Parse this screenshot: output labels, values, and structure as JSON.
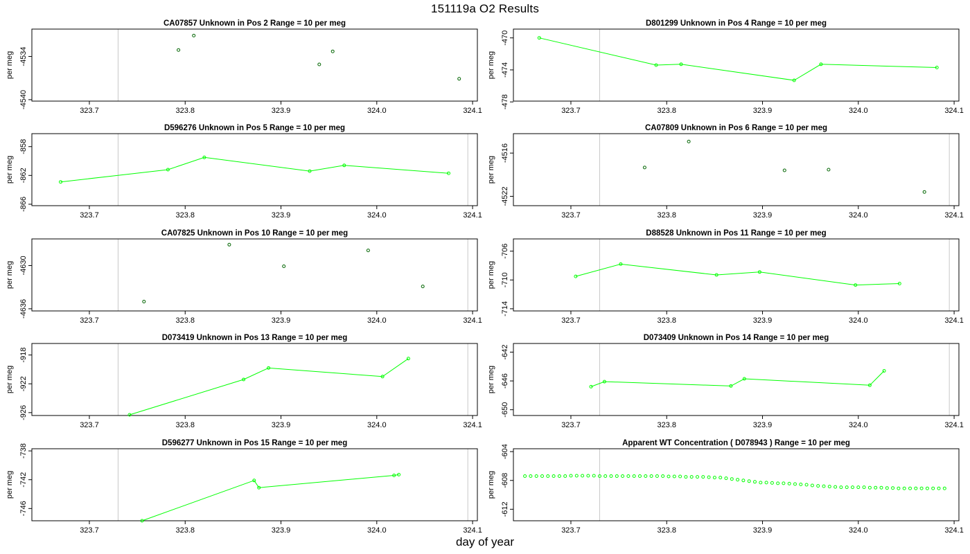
{
  "title": "151119a  O2 Results",
  "xlabel": "day of year",
  "chart_data": [
    {
      "type": "scatter",
      "title": "CA07857    Unknown in Pos 2          Range = 10 per meg",
      "ylabel": "per meg",
      "xlim": [
        323.64,
        324.105
      ],
      "ylim": [
        -4540.2,
        -4530.2
      ],
      "xticks": [
        323.7,
        323.8,
        323.9,
        324.0,
        324.1
      ],
      "xtick_labels": [
        "323.7",
        "323.8",
        "323.9",
        "324.0",
        "324.1"
      ],
      "yticks": [
        -4534,
        -4540
      ],
      "vlines": [
        323.73
      ],
      "series": [
        {
          "x": [
            323.793,
            323.809,
            323.94,
            323.954,
            324.086
          ],
          "y": [
            -4533.1,
            -4531.1,
            -4535.1,
            -4533.3,
            -4537.1
          ],
          "connected": false,
          "color": "#006400"
        }
      ]
    },
    {
      "type": "line",
      "title": "D801299    Unknown in Pos 4          Range = 10 per meg",
      "ylabel": "per meg",
      "xlim": [
        323.64,
        324.105
      ],
      "ylim": [
        -477.9,
        -468.9
      ],
      "xticks": [
        323.7,
        323.8,
        323.9,
        324.0,
        324.1
      ],
      "xtick_labels": [
        "323.7",
        "323.8",
        "323.9",
        "324.0",
        "324.1"
      ],
      "yticks": [
        -470,
        -474,
        -478
      ],
      "vlines": [
        323.73
      ],
      "series": [
        {
          "x": [
            323.667,
            323.789,
            323.815,
            323.933,
            323.961,
            324.082
          ],
          "y": [
            -470.0,
            -473.4,
            -473.3,
            -475.3,
            -473.3,
            -473.7
          ],
          "connected": true,
          "color": "#00ff00"
        }
      ]
    },
    {
      "type": "line",
      "title": "D596276    Unknown in Pos 5          Range = 10 per meg",
      "ylabel": "per meg",
      "xlim": [
        323.64,
        324.105
      ],
      "ylim": [
        -866.2,
        -856.2
      ],
      "xticks": [
        323.7,
        323.8,
        323.9,
        324.0,
        324.1
      ],
      "xtick_labels": [
        "323.7",
        "323.8",
        "323.9",
        "324.0",
        "324.1"
      ],
      "yticks": [
        -858,
        -862,
        -866
      ],
      "vlines": [
        323.73,
        324.095
      ],
      "series": [
        {
          "x": [
            323.67,
            323.782,
            323.82,
            323.93,
            323.966,
            324.075
          ],
          "y": [
            -862.9,
            -861.2,
            -859.5,
            -861.4,
            -860.6,
            -861.7
          ],
          "connected": true,
          "color": "#00ff00"
        }
      ]
    },
    {
      "type": "scatter",
      "title": "CA07809    Unknown in Pos 6          Range = 10 per meg",
      "ylabel": "per meg",
      "xlim": [
        323.64,
        324.105
      ],
      "ylim": [
        -4523.3,
        -4513.3
      ],
      "xticks": [
        323.7,
        323.8,
        323.9,
        324.0,
        324.1
      ],
      "xtick_labels": [
        "323.7",
        "323.8",
        "323.9",
        "324.0",
        "324.1"
      ],
      "yticks": [
        -4516,
        -4522
      ],
      "vlines": [
        323.73,
        324.095
      ],
      "series": [
        {
          "x": [
            323.777,
            323.823,
            323.923,
            323.969,
            324.069
          ],
          "y": [
            -4518.0,
            -4514.4,
            -4518.4,
            -4518.3,
            -4521.4
          ],
          "connected": false,
          "color": "#006400"
        }
      ]
    },
    {
      "type": "scatter",
      "title": "CA07825    Unknown in Pos 10          Range = 10 per meg",
      "ylabel": "per meg",
      "xlim": [
        323.64,
        324.105
      ],
      "ylim": [
        -4636.3,
        -4626.3
      ],
      "xticks": [
        323.7,
        323.8,
        323.9,
        324.0,
        324.1
      ],
      "xtick_labels": [
        "323.7",
        "323.8",
        "323.9",
        "324.0",
        "324.1"
      ],
      "yticks": [
        -4630,
        -4636
      ],
      "vlines": [
        323.73,
        324.095
      ],
      "series": [
        {
          "x": [
            323.757,
            323.846,
            323.903,
            323.991,
            324.048
          ],
          "y": [
            -4635.0,
            -4627.1,
            -4630.1,
            -4627.9,
            -4632.9
          ],
          "connected": false,
          "color": "#006400"
        }
      ]
    },
    {
      "type": "line",
      "title": "D88528    Unknown in Pos 11          Range = 10 per meg",
      "ylabel": "per meg",
      "xlim": [
        323.64,
        324.105
      ],
      "ylim": [
        -714.3,
        -704.3
      ],
      "xticks": [
        323.7,
        323.8,
        323.9,
        324.0,
        324.1
      ],
      "xtick_labels": [
        "323.7",
        "323.8",
        "323.9",
        "324.0",
        "324.1"
      ],
      "yticks": [
        -706,
        -710,
        -714
      ],
      "vlines": [
        323.73,
        324.095
      ],
      "series": [
        {
          "x": [
            323.705,
            323.752,
            323.852,
            323.897,
            323.997,
            324.043
          ],
          "y": [
            -709.5,
            -707.8,
            -709.3,
            -708.9,
            -710.7,
            -710.5
          ],
          "connected": true,
          "color": "#00ff00"
        }
      ]
    },
    {
      "type": "line",
      "title": "D073419    Unknown in Pos 13          Range = 10 per meg",
      "ylabel": "per meg",
      "xlim": [
        323.64,
        324.105
      ],
      "ylim": [
        -926.4,
        -916.4
      ],
      "xticks": [
        323.7,
        323.8,
        323.9,
        324.0,
        324.1
      ],
      "xtick_labels": [
        "323.7",
        "323.8",
        "323.9",
        "324.0",
        "324.1"
      ],
      "yticks": [
        -918,
        -922,
        -926
      ],
      "vlines": [
        323.73,
        324.095
      ],
      "series": [
        {
          "x": [
            323.742,
            323.861,
            323.887,
            324.006,
            324.033
          ],
          "y": [
            -926.3,
            -921.4,
            -919.8,
            -921.0,
            -918.5
          ],
          "connected": true,
          "color": "#00ff00"
        }
      ]
    },
    {
      "type": "line",
      "title": "D073409    Unknown in Pos 14          Range = 10 per meg",
      "ylabel": "per meg",
      "xlim": [
        323.64,
        324.105
      ],
      "ylim": [
        -650.8,
        -640.8
      ],
      "xticks": [
        323.7,
        323.8,
        323.9,
        324.0,
        324.1
      ],
      "xtick_labels": [
        "323.7",
        "323.8",
        "323.9",
        "324.0",
        "324.1"
      ],
      "yticks": [
        -642,
        -646,
        -650
      ],
      "vlines": [
        323.73,
        324.095
      ],
      "series": [
        {
          "x": [
            323.721,
            323.735,
            323.867,
            323.881,
            324.012,
            324.027
          ],
          "y": [
            -646.8,
            -646.1,
            -646.7,
            -645.7,
            -646.6,
            -644.6
          ],
          "connected": true,
          "color": "#00ff00"
        }
      ]
    },
    {
      "type": "line",
      "title": "D596277    Unknown in Pos 15          Range = 10 per meg",
      "ylabel": "per meg",
      "xlim": [
        323.64,
        324.105
      ],
      "ylim": [
        -747.7,
        -737.7
      ],
      "xticks": [
        323.7,
        323.8,
        323.9,
        324.0,
        324.1
      ],
      "xtick_labels": [
        "323.7",
        "323.8",
        "323.9",
        "324.0",
        "324.1"
      ],
      "yticks": [
        -738,
        -742,
        -746
      ],
      "vlines": [
        323.73,
        324.095
      ],
      "series": [
        {
          "x": [
            323.755,
            323.872,
            323.877,
            324.018,
            324.023
          ],
          "y": [
            -747.7,
            -742.1,
            -743.1,
            -741.4,
            -741.3
          ],
          "connected": true,
          "color": "#00ff00"
        }
      ]
    },
    {
      "type": "scatter",
      "title": "Apparent WT Concentration ( D078943 )          Range = 10 per meg",
      "ylabel": "per meg",
      "xlim": [
        323.64,
        324.105
      ],
      "ylim": [
        -613.6,
        -603.6
      ],
      "xticks": [
        323.7,
        323.8,
        323.9,
        324.0,
        324.1
      ],
      "xtick_labels": [
        "323.7",
        "323.8",
        "323.9",
        "324.0",
        "324.1"
      ],
      "yticks": [
        -604,
        -608,
        -612
      ],
      "vlines": [
        323.73
      ],
      "series": [
        {
          "x": [
            323.652,
            323.658,
            323.664,
            323.67,
            323.676,
            323.682,
            323.688,
            323.694,
            323.7,
            323.706,
            323.712,
            323.718,
            323.724,
            323.73,
            323.736,
            323.742,
            323.748,
            323.754,
            323.76,
            323.766,
            323.772,
            323.778,
            323.784,
            323.79,
            323.796,
            323.802,
            323.808,
            323.814,
            323.82,
            323.826,
            323.832,
            323.838,
            323.844,
            323.85,
            323.856,
            323.862,
            323.868,
            323.874,
            323.88,
            323.886,
            323.892,
            323.898,
            323.904,
            323.91,
            323.916,
            323.922,
            323.928,
            323.934,
            323.94,
            323.946,
            323.952,
            323.958,
            323.964,
            323.97,
            323.976,
            323.982,
            323.988,
            323.994,
            324.0,
            324.006,
            324.012,
            324.018,
            324.024,
            324.03,
            324.036,
            324.042,
            324.048,
            324.054,
            324.06,
            324.066,
            324.072,
            324.078,
            324.084,
            324.09
          ],
          "y": [
            -607.4,
            -607.4,
            -607.4,
            -607.4,
            -607.4,
            -607.4,
            -607.4,
            -607.4,
            -607.35,
            -607.35,
            -607.35,
            -607.35,
            -607.35,
            -607.4,
            -607.4,
            -607.4,
            -607.4,
            -607.4,
            -607.4,
            -607.4,
            -607.4,
            -607.4,
            -607.4,
            -607.4,
            -607.4,
            -607.45,
            -607.45,
            -607.45,
            -607.5,
            -607.5,
            -607.5,
            -607.5,
            -607.55,
            -607.6,
            -607.6,
            -607.7,
            -607.8,
            -607.9,
            -608.0,
            -608.1,
            -608.2,
            -608.3,
            -608.3,
            -608.35,
            -608.4,
            -608.4,
            -608.45,
            -608.5,
            -608.55,
            -608.6,
            -608.7,
            -608.75,
            -608.8,
            -608.85,
            -608.9,
            -608.95,
            -608.95,
            -608.95,
            -608.95,
            -608.95,
            -609.0,
            -609.0,
            -609.0,
            -609.05,
            -609.05,
            -609.1,
            -609.1,
            -609.1,
            -609.1,
            -609.1,
            -609.1,
            -609.1,
            -609.1,
            -609.1
          ],
          "connected": false,
          "color": "#00ff00"
        }
      ]
    }
  ]
}
